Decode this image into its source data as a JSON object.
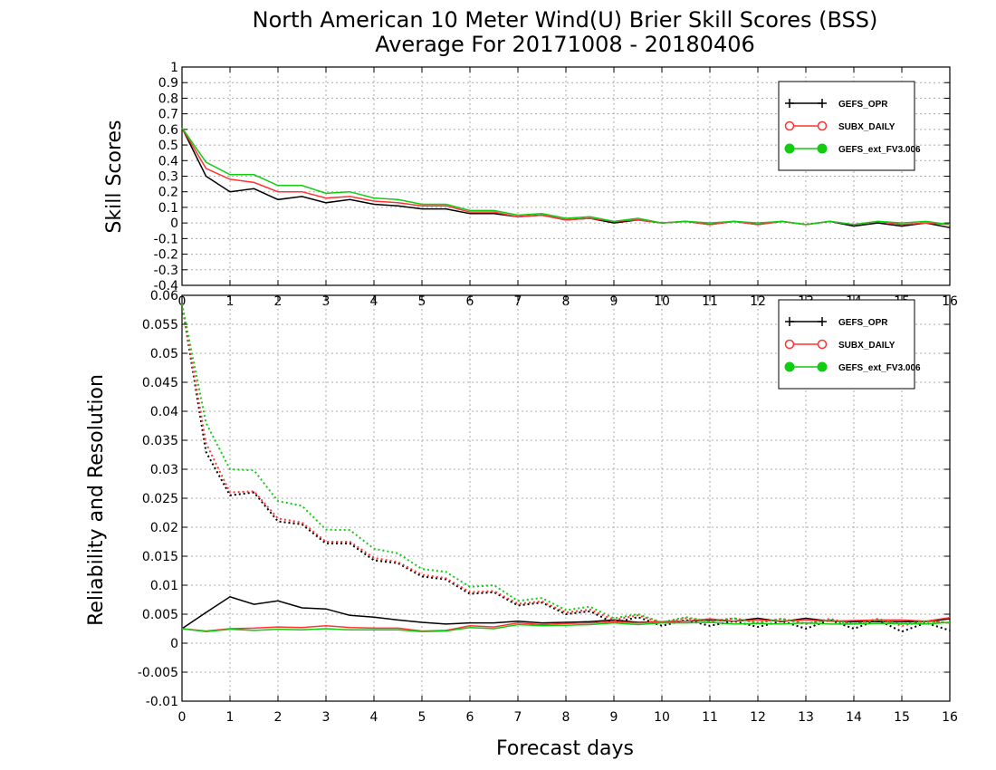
{
  "title_line1": "North American 10 Meter Wind(U) Brier Skill Scores (BSS)",
  "title_line2": "Average For 20171008 - 20180406",
  "colors": {
    "GEFS_OPR": "#000000",
    "SUBX_DAILY": "#ff3333",
    "GEFS_ext_FV3.006": "#11cc11"
  },
  "chart_data": [
    {
      "type": "line",
      "ylabel": "Skill Scores",
      "xlabel": "",
      "xlim": [
        0,
        16
      ],
      "ylim": [
        -0.4,
        1
      ],
      "x_ticks": [
        0,
        1,
        2,
        3,
        4,
        5,
        6,
        7,
        8,
        9,
        10,
        11,
        12,
        13,
        14,
        15,
        16
      ],
      "y_ticks": [
        -0.4,
        -0.3,
        -0.2,
        -0.1,
        0,
        0.1,
        0.2,
        0.3,
        0.4,
        0.5,
        0.6,
        0.7,
        0.8,
        0.9,
        1
      ],
      "y_tick_labels": [
        "-0.4",
        "-0.3",
        "-0.2",
        "-0.1",
        "0",
        "0.1",
        "0.2",
        "0.3",
        "0.4",
        "0.5",
        "0.6",
        "0.7",
        "0.8",
        "0.9",
        "1"
      ],
      "grid": true,
      "legend_position": "top-right",
      "x": [
        0,
        0.5,
        1,
        1.5,
        2,
        2.5,
        3,
        3.5,
        4,
        4.5,
        5,
        5.5,
        6,
        6.5,
        7,
        7.5,
        8,
        8.5,
        9,
        9.5,
        10,
        10.5,
        11,
        11.5,
        12,
        12.5,
        13,
        13.5,
        14,
        14.5,
        15,
        15.5,
        16
      ],
      "series": [
        {
          "name": "GEFS_OPR",
          "marker": "+",
          "style": "solid",
          "values": [
            0.61,
            0.3,
            0.2,
            0.22,
            0.15,
            0.17,
            0.13,
            0.15,
            0.12,
            0.11,
            0.09,
            0.09,
            0.06,
            0.06,
            0.04,
            0.05,
            0.02,
            0.03,
            0.0,
            0.02,
            0.0,
            0.01,
            -0.01,
            0.01,
            -0.01,
            0.01,
            -0.01,
            0.01,
            -0.02,
            0.0,
            -0.02,
            0.0,
            -0.03
          ]
        },
        {
          "name": "SUBX_DAILY",
          "marker": "o",
          "style": "solid",
          "values": [
            0.61,
            0.35,
            0.28,
            0.26,
            0.2,
            0.2,
            0.16,
            0.17,
            0.14,
            0.13,
            0.11,
            0.11,
            0.07,
            0.07,
            0.04,
            0.05,
            0.02,
            0.03,
            0.01,
            0.02,
            0.0,
            0.01,
            -0.01,
            0.01,
            -0.01,
            0.01,
            -0.01,
            0.01,
            -0.01,
            0.01,
            -0.01,
            0.0,
            -0.01
          ]
        },
        {
          "name": "GEFS_ext_FV3.006",
          "marker": "filled-circle",
          "style": "solid",
          "values": [
            0.61,
            0.39,
            0.31,
            0.31,
            0.24,
            0.24,
            0.19,
            0.2,
            0.16,
            0.15,
            0.12,
            0.12,
            0.08,
            0.08,
            0.05,
            0.06,
            0.03,
            0.04,
            0.01,
            0.03,
            0.0,
            0.01,
            0.0,
            0.01,
            0.0,
            0.01,
            -0.01,
            0.01,
            -0.01,
            0.01,
            0.0,
            0.01,
            -0.01
          ]
        }
      ]
    },
    {
      "type": "line",
      "ylabel": "Reliability and Resolution",
      "xlabel": "Forecast days",
      "xlim": [
        0,
        16
      ],
      "ylim": [
        -0.01,
        0.06
      ],
      "x_ticks": [
        0,
        1,
        2,
        3,
        4,
        5,
        6,
        7,
        8,
        9,
        10,
        11,
        12,
        13,
        14,
        15,
        16
      ],
      "y_ticks": [
        -0.01,
        -0.005,
        0,
        0.005,
        0.01,
        0.015,
        0.02,
        0.025,
        0.03,
        0.035,
        0.04,
        0.045,
        0.05,
        0.055,
        0.06
      ],
      "y_tick_labels": [
        "-0.01",
        "-0.005",
        "0",
        "0.005",
        "0.01",
        "0.015",
        "0.02",
        "0.025",
        "0.03",
        "0.035",
        "0.04",
        "0.045",
        "0.05",
        "0.055",
        "0.06"
      ],
      "grid": true,
      "legend_position": "top-right",
      "x": [
        0,
        0.5,
        1,
        1.5,
        2,
        2.5,
        3,
        3.5,
        4,
        4.5,
        5,
        5.5,
        6,
        6.5,
        7,
        7.5,
        8,
        8.5,
        9,
        9.5,
        10,
        10.5,
        11,
        11.5,
        12,
        12.5,
        13,
        13.5,
        14,
        14.5,
        15,
        15.5,
        16
      ],
      "series": [
        {
          "name": "GEFS_OPR",
          "component": "reliability",
          "style": "solid",
          "values": [
            0.0025,
            0.0053,
            0.008,
            0.0067,
            0.0073,
            0.0061,
            0.0059,
            0.0048,
            0.0045,
            0.004,
            0.0036,
            0.0033,
            0.0035,
            0.0035,
            0.0038,
            0.0035,
            0.0036,
            0.0037,
            0.004,
            0.0036,
            0.0037,
            0.0038,
            0.004,
            0.0038,
            0.0043,
            0.0037,
            0.0043,
            0.0038,
            0.0037,
            0.0037,
            0.0037,
            0.0037,
            0.0042
          ]
        },
        {
          "name": "GEFS_OPR",
          "component": "resolution",
          "style": "dotted",
          "values": [
            0.0585,
            0.033,
            0.0255,
            0.026,
            0.021,
            0.0205,
            0.0172,
            0.0172,
            0.0143,
            0.0138,
            0.0115,
            0.011,
            0.0085,
            0.0088,
            0.0065,
            0.007,
            0.005,
            0.0055,
            0.0035,
            0.0045,
            0.003,
            0.004,
            0.003,
            0.0038,
            0.0028,
            0.0038,
            0.0025,
            0.004,
            0.0025,
            0.004,
            0.002,
            0.0035,
            0.0022
          ]
        },
        {
          "name": "SUBX_DAILY",
          "component": "reliability",
          "style": "solid",
          "values": [
            0.0025,
            0.0021,
            0.0025,
            0.0026,
            0.0028,
            0.0027,
            0.003,
            0.0027,
            0.0026,
            0.0026,
            0.0021,
            0.0022,
            0.003,
            0.0028,
            0.0035,
            0.0032,
            0.0034,
            0.0035,
            0.0037,
            0.0035,
            0.0037,
            0.0038,
            0.0042,
            0.0038,
            0.004,
            0.0038,
            0.004,
            0.0038,
            0.0039,
            0.004,
            0.004,
            0.0038,
            0.0044
          ]
        },
        {
          "name": "SUBX_DAILY",
          "component": "resolution",
          "style": "dotted",
          "values": [
            0.0585,
            0.0345,
            0.026,
            0.0262,
            0.0215,
            0.0208,
            0.0175,
            0.0175,
            0.0147,
            0.014,
            0.0118,
            0.0112,
            0.0088,
            0.009,
            0.0068,
            0.0072,
            0.0053,
            0.0058,
            0.004,
            0.0048,
            0.0035,
            0.0043,
            0.0038,
            0.0043,
            0.0035,
            0.0042,
            0.0033,
            0.0042,
            0.0033,
            0.0042,
            0.003,
            0.0038,
            0.0035
          ]
        },
        {
          "name": "GEFS_ext_FV3.006",
          "component": "reliability",
          "style": "solid",
          "values": [
            0.0025,
            0.002,
            0.0024,
            0.0022,
            0.0024,
            0.0023,
            0.0025,
            0.0023,
            0.0023,
            0.0023,
            0.002,
            0.0021,
            0.0027,
            0.0025,
            0.0032,
            0.003,
            0.0031,
            0.0032,
            0.0035,
            0.0032,
            0.0035,
            0.0035,
            0.0036,
            0.0033,
            0.0034,
            0.0033,
            0.0035,
            0.0033,
            0.0033,
            0.0034,
            0.0034,
            0.0033,
            0.0036
          ]
        },
        {
          "name": "GEFS_ext_FV3.006",
          "component": "resolution",
          "style": "dotted",
          "values": [
            0.0585,
            0.038,
            0.03,
            0.0298,
            0.0245,
            0.0237,
            0.0196,
            0.0195,
            0.0163,
            0.0155,
            0.0128,
            0.0123,
            0.0097,
            0.01,
            0.0073,
            0.0078,
            0.0057,
            0.0063,
            0.0043,
            0.005,
            0.0036,
            0.0045,
            0.0037,
            0.0043,
            0.0035,
            0.0042,
            0.0034,
            0.004,
            0.0033,
            0.004,
            0.0033,
            0.0038,
            0.0035
          ]
        }
      ]
    }
  ]
}
